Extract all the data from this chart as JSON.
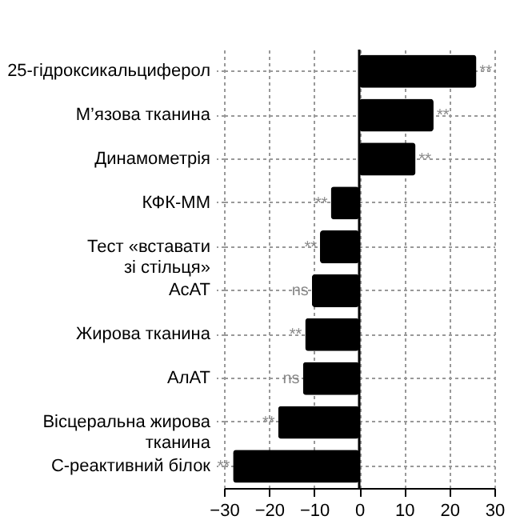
{
  "chart_data": {
    "type": "bar",
    "orientation": "horizontal",
    "categories": [
      "25-гідроксикальциферол",
      "М’язова тканина",
      "Динамометрія",
      "КФК-ММ",
      "Тест «вставати\nзі стільця»",
      "АсАТ",
      "Жирова тканина",
      "АлАТ",
      "Вісцеральна жирова\nтканина",
      "С-реактивний білок"
    ],
    "series": [
      {
        "color": "#000000",
        "values": [
          26,
          16.5,
          12.5,
          -6.3,
          -8.7,
          -10.5,
          -12,
          -12.5,
          -18,
          -28
        ]
      }
    ],
    "ref_lines": [
      {
        "axis": "x",
        "value": 0,
        "color": "#000000"
      }
    ],
    "xlim": [
      -30,
      30
    ],
    "xticks": [
      -30,
      -20,
      -10,
      0,
      10,
      20,
      30
    ],
    "grid": true,
    "annotations": [
      {
        "text": "**",
        "x": 26,
        "y": "25-гідроксикальциферол"
      },
      {
        "text": "**",
        "x": 16.5,
        "y": "М’язова тканина"
      },
      {
        "text": "**",
        "x": 12.5,
        "y": "Динамометрія"
      },
      {
        "text": "**",
        "x": -6.3,
        "y": "КФК-ММ"
      },
      {
        "text": "**",
        "x": -8.7,
        "y": "Тест «вставати\nзі стільця»"
      },
      {
        "text": "ns",
        "x": -10.5,
        "y": "АсАТ"
      },
      {
        "text": "**",
        "x": -12,
        "y": "Жирова тканина"
      },
      {
        "text": "ns",
        "x": -12.5,
        "y": "АлАТ"
      },
      {
        "text": "**",
        "x": -18,
        "y": "Вісцеральна жирова\nтканина"
      },
      {
        "text": "**",
        "x": -28,
        "y": "С-реактивний білок"
      }
    ]
  }
}
